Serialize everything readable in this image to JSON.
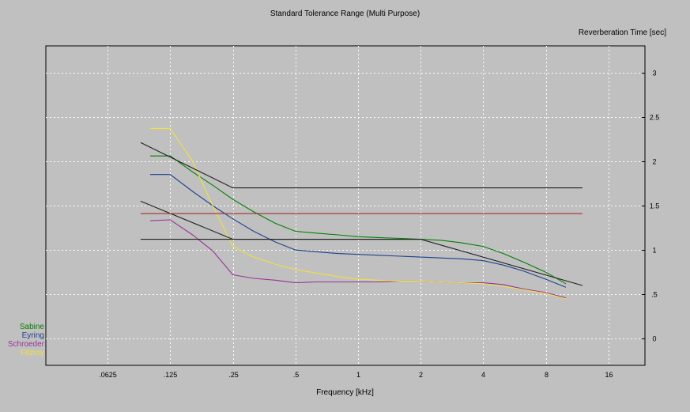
{
  "colors": {
    "background": "#c0c0c0",
    "plot_background": "#c0c0c0",
    "grid": "#ffffff"
  },
  "chart_data": {
    "type": "line",
    "title": "Standard Tolerance Range (Multi Purpose)",
    "xlabel": "Frequency [kHz]",
    "ylabel": "Reverberation Time [sec]",
    "x_scale": "log2",
    "xlim": [
      0.0315,
      24
    ],
    "ylim": [
      -0.3,
      3.3
    ],
    "x_ticks": [
      {
        "value": 0.0625,
        "label": ".0625"
      },
      {
        "value": 0.125,
        "label": ".125"
      },
      {
        "value": 0.25,
        "label": ".25"
      },
      {
        "value": 0.5,
        "label": ".5"
      },
      {
        "value": 1,
        "label": "1"
      },
      {
        "value": 2,
        "label": "2"
      },
      {
        "value": 4,
        "label": "4"
      },
      {
        "value": 8,
        "label": "8"
      },
      {
        "value": 16,
        "label": "16"
      }
    ],
    "y_ticks": [
      {
        "value": 0,
        "label": "0"
      },
      {
        "value": 0.5,
        "label": ".5"
      },
      {
        "value": 1,
        "label": "1"
      },
      {
        "value": 1.5,
        "label": "1.5"
      },
      {
        "value": 2,
        "label": "2"
      },
      {
        "value": 2.5,
        "label": "2.5"
      },
      {
        "value": 3,
        "label": "3"
      }
    ],
    "grid": true,
    "y_axis_side": "right",
    "legend_position": "bottom-left",
    "series": [
      {
        "name": "Sabine",
        "color": "#008000",
        "x": [
          0.1,
          0.125,
          0.16,
          0.2,
          0.25,
          0.315,
          0.4,
          0.5,
          0.63,
          0.8,
          1,
          1.25,
          1.6,
          2,
          2.5,
          3.15,
          4,
          5,
          6.3,
          8,
          10
        ],
        "y": [
          2.06,
          2.06,
          1.88,
          1.73,
          1.57,
          1.43,
          1.3,
          1.21,
          1.19,
          1.17,
          1.15,
          1.14,
          1.13,
          1.12,
          1.11,
          1.08,
          1.04,
          0.96,
          0.86,
          0.75,
          0.62
        ]
      },
      {
        "name": "Eyring",
        "color": "#1f3f8f",
        "x": [
          0.1,
          0.125,
          0.16,
          0.2,
          0.25,
          0.315,
          0.4,
          0.5,
          0.63,
          0.8,
          1,
          1.25,
          1.6,
          2,
          2.5,
          3.15,
          4,
          5,
          6.3,
          8,
          10
        ],
        "y": [
          1.85,
          1.85,
          1.66,
          1.5,
          1.35,
          1.21,
          1.09,
          1.0,
          0.98,
          0.96,
          0.95,
          0.94,
          0.93,
          0.92,
          0.91,
          0.9,
          0.88,
          0.83,
          0.76,
          0.67,
          0.58
        ]
      },
      {
        "name": "Schroeder",
        "color": "#993399",
        "x": [
          0.1,
          0.125,
          0.16,
          0.2,
          0.25,
          0.315,
          0.4,
          0.5,
          0.63,
          0.8,
          1,
          1.25,
          1.6,
          2,
          2.5,
          3.15,
          4,
          5,
          6.3,
          8,
          10
        ],
        "y": [
          1.33,
          1.34,
          1.17,
          0.99,
          0.72,
          0.68,
          0.66,
          0.63,
          0.64,
          0.64,
          0.64,
          0.64,
          0.65,
          0.65,
          0.64,
          0.63,
          0.63,
          0.61,
          0.56,
          0.52,
          0.46
        ]
      },
      {
        "name": "Fitzroy",
        "color": "#f0e040",
        "x": [
          0.1,
          0.125,
          0.16,
          0.2,
          0.25,
          0.315,
          0.4,
          0.5,
          0.63,
          0.8,
          1,
          1.25,
          1.6,
          2,
          2.5,
          3.15,
          4,
          5,
          6.3,
          8,
          10
        ],
        "y": [
          2.37,
          2.37,
          2.0,
          1.5,
          1.04,
          0.92,
          0.84,
          0.78,
          0.74,
          0.7,
          0.67,
          0.66,
          0.65,
          0.65,
          0.64,
          0.63,
          0.62,
          0.59,
          0.55,
          0.51,
          0.45
        ]
      },
      {
        "name": "",
        "color": "#202020",
        "x": [
          0.09,
          0.25,
          12
        ],
        "y": [
          2.21,
          1.7,
          1.7
        ]
      },
      {
        "name": "",
        "color": "#202020",
        "x": [
          0.09,
          0.25,
          2,
          12
        ],
        "y": [
          1.55,
          1.12,
          1.12,
          0.6
        ]
      },
      {
        "name": "",
        "color": "#202020",
        "x": [
          0.09,
          2
        ],
        "y": [
          1.12,
          1.12
        ]
      },
      {
        "name": "",
        "color": "#a03030",
        "x": [
          0.09,
          12
        ],
        "y": [
          1.41,
          1.41
        ]
      }
    ]
  }
}
